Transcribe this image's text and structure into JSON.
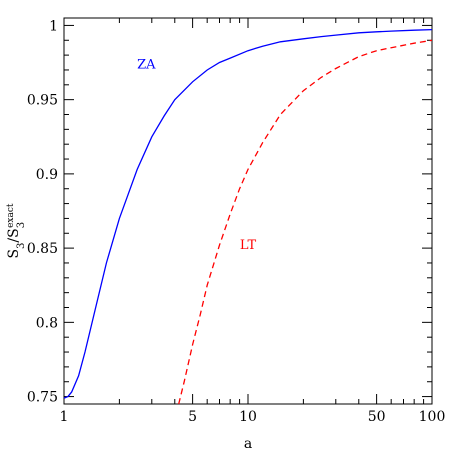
{
  "chart_data": {
    "type": "line",
    "xlabel": "a",
    "ylabel": {
      "base": "S",
      "sub": "3",
      "sep": "/",
      "base2": "S",
      "sub2": "3",
      "sup2": "exact"
    },
    "xscale": "log",
    "xlim": [
      1,
      100
    ],
    "ylim": [
      0.745,
      1.005
    ],
    "xticks": [
      1,
      5,
      10,
      50,
      100
    ],
    "xtick_labels": [
      "1",
      "5",
      "10",
      "50",
      "100"
    ],
    "yticks": [
      0.75,
      0.8,
      0.85,
      0.9,
      0.95,
      1.0
    ],
    "ytick_labels": [
      "0.75",
      "0.8",
      "0.85",
      "0.9",
      "0.95",
      "1"
    ],
    "grid": false,
    "legend": "none",
    "series": [
      {
        "name": "ZA",
        "color": "#0000ff",
        "style": "solid",
        "label_at": {
          "x": 2.8,
          "y": 0.971
        },
        "x": [
          1.0,
          1.05,
          1.1,
          1.2,
          1.3,
          1.5,
          1.7,
          2.0,
          2.5,
          3.0,
          3.5,
          4.0,
          5.0,
          6.0,
          7.0,
          8.0,
          10.0,
          12.0,
          15.0,
          20.0,
          25.0,
          30.0,
          40.0,
          50.0,
          60.0,
          80.0,
          100.0
        ],
        "y": [
          0.749,
          0.75,
          0.753,
          0.764,
          0.78,
          0.812,
          0.84,
          0.87,
          0.903,
          0.925,
          0.939,
          0.95,
          0.962,
          0.97,
          0.975,
          0.978,
          0.983,
          0.986,
          0.989,
          0.991,
          0.9925,
          0.9935,
          0.995,
          0.9957,
          0.9962,
          0.9968,
          0.9972
        ]
      },
      {
        "name": "LT",
        "color": "#ff0000",
        "style": "dashed",
        "label_at": {
          "x": 10.0,
          "y": 0.8495
        },
        "x": [
          4.2,
          4.5,
          5.0,
          5.5,
          6.0,
          7.0,
          8.0,
          9.0,
          10.0,
          12.0,
          15.0,
          20.0,
          25.0,
          30.0,
          40.0,
          50.0,
          60.0,
          80.0,
          100.0
        ],
        "y": [
          0.745,
          0.76,
          0.785,
          0.805,
          0.825,
          0.852,
          0.873,
          0.89,
          0.903,
          0.921,
          0.94,
          0.956,
          0.965,
          0.971,
          0.979,
          0.983,
          0.985,
          0.988,
          0.99
        ]
      }
    ]
  }
}
